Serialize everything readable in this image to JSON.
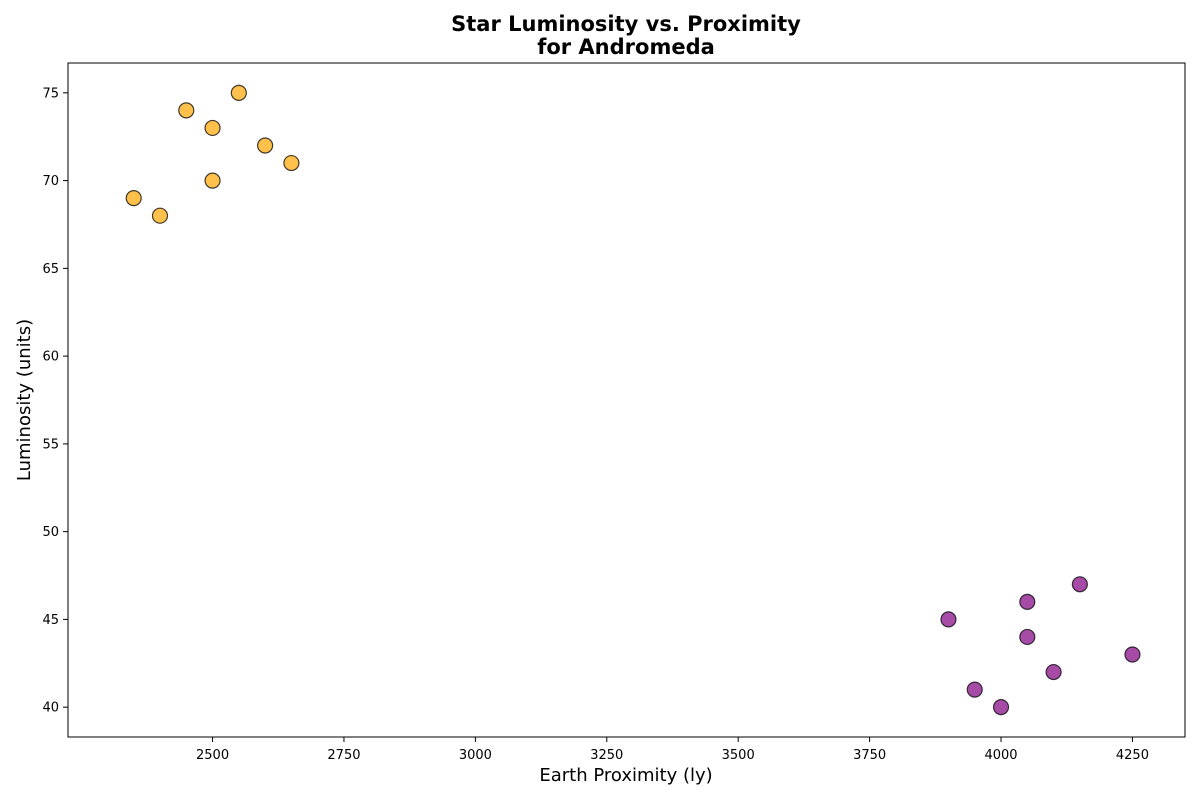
{
  "chart_data": {
    "type": "scatter",
    "title_lines": [
      "Star Luminosity vs. Proximity",
      "for Andromeda"
    ],
    "xlabel": "Earth Proximity (ly)",
    "ylabel": "Luminosity (units)",
    "xlim": [
      2225,
      4350
    ],
    "ylim": [
      38.3,
      76.7
    ],
    "xticks": [
      2500,
      2750,
      3000,
      3250,
      3500,
      3750,
      4000,
      4250
    ],
    "yticks": [
      40,
      45,
      50,
      55,
      60,
      65,
      70,
      75
    ],
    "grid": false,
    "series": [
      {
        "color": "#FFA500",
        "points": [
          {
            "x": 2350,
            "y": 69
          },
          {
            "x": 2400,
            "y": 68
          },
          {
            "x": 2450,
            "y": 74
          },
          {
            "x": 2500,
            "y": 73
          },
          {
            "x": 2500,
            "y": 70
          },
          {
            "x": 2550,
            "y": 75
          },
          {
            "x": 2600,
            "y": 72
          },
          {
            "x": 2650,
            "y": 71
          }
        ]
      },
      {
        "color": "#800080",
        "points": [
          {
            "x": 3900,
            "y": 45
          },
          {
            "x": 3950,
            "y": 41
          },
          {
            "x": 4000,
            "y": 40
          },
          {
            "x": 4050,
            "y": 46
          },
          {
            "x": 4050,
            "y": 44
          },
          {
            "x": 4100,
            "y": 42
          },
          {
            "x": 4150,
            "y": 47
          },
          {
            "x": 4250,
            "y": 43
          }
        ]
      }
    ]
  }
}
